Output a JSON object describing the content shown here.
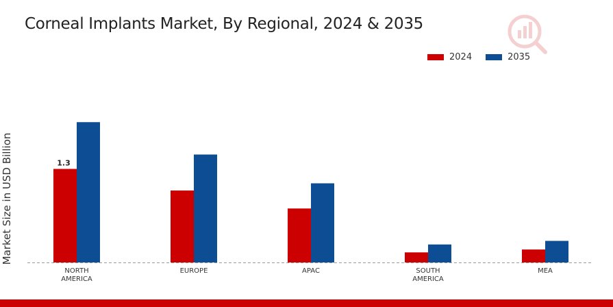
{
  "chart_data": {
    "type": "bar",
    "title": "Corneal Implants Market, By Regional, 2024 & 2035",
    "ylabel": "Market Size in USD Billion",
    "xlabel": "",
    "categories": [
      "NORTH AMERICA",
      "EUROPE",
      "APAC",
      "SOUTH AMERICA",
      "MEA"
    ],
    "series": [
      {
        "name": "2024",
        "color": "#cc0000",
        "values": [
          1.3,
          1.0,
          0.75,
          0.14,
          0.18
        ]
      },
      {
        "name": "2035",
        "color": "#0d4d94",
        "values": [
          1.95,
          1.5,
          1.1,
          0.25,
          0.3
        ]
      }
    ],
    "data_labels": [
      {
        "series": 0,
        "index": 0,
        "text": "1.3"
      }
    ],
    "ylim": [
      0,
      2.6
    ],
    "grid": false,
    "legend": "top-right",
    "baseline": "dashed"
  },
  "colors": {
    "footer_bar": "#cc0000",
    "axis_line": "#999999"
  },
  "icons": {
    "watermark": "logo-watermark-icon"
  }
}
